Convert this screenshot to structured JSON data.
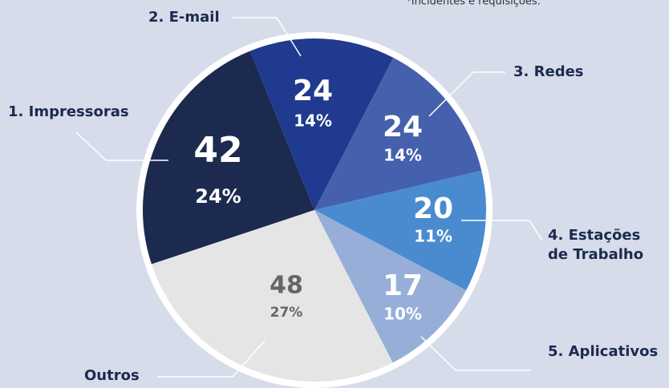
{
  "chart_data": {
    "type": "pie",
    "note": "*Incidentes e requisições.",
    "categories": [
      "1. Impressoras",
      "2. E-mail",
      "3. Redes",
      "4. Estações de Trabalho",
      "5. Aplicativos",
      "Outros"
    ],
    "values": [
      42,
      24,
      24,
      20,
      17,
      48
    ],
    "percent_labels": [
      "24%",
      "14%",
      "14%",
      "11%",
      "10%",
      "27%"
    ],
    "colors": [
      "#1c2a4f",
      "#1f3a8e",
      "#4560ad",
      "#4a8bd0",
      "#97afd8",
      "#e5e5e5"
    ]
  }
}
